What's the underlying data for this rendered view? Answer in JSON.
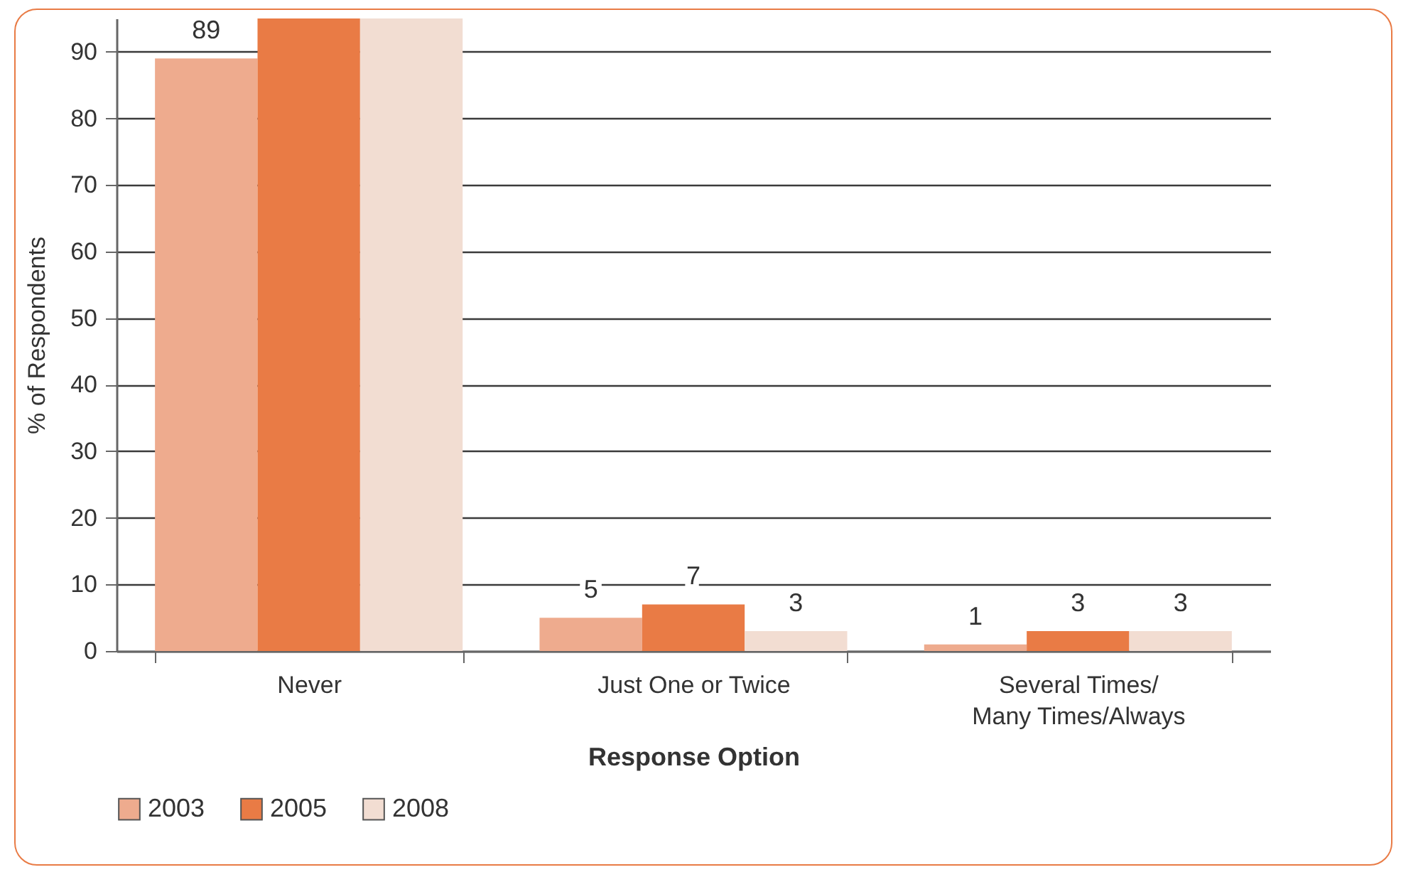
{
  "chart_data": {
    "type": "bar",
    "xlabel": "Response Option",
    "ylabel": "% of Respondents",
    "categories": [
      "Never",
      "Just One or Twice",
      "Several Times/\nMany Times/Always"
    ],
    "series": [
      {
        "name": "2003",
        "color": "#eeab8e",
        "values": [
          89,
          5,
          1
        ],
        "value_labels": [
          "89",
          "5",
          "1"
        ]
      },
      {
        "name": "2005",
        "color": "#e97b45",
        "values": [
          95,
          7,
          3
        ],
        "value_labels": [
          null,
          "7",
          "3"
        ]
      },
      {
        "name": "2008",
        "color": "#f2ddd2",
        "values": [
          95,
          3,
          3
        ],
        "value_labels": [
          null,
          "3",
          "3"
        ]
      }
    ],
    "ylim": [
      0,
      95
    ],
    "yticks": [
      0,
      10,
      20,
      30,
      40,
      50,
      60,
      70,
      80,
      90
    ],
    "grid": "y",
    "legend": "bottom"
  }
}
